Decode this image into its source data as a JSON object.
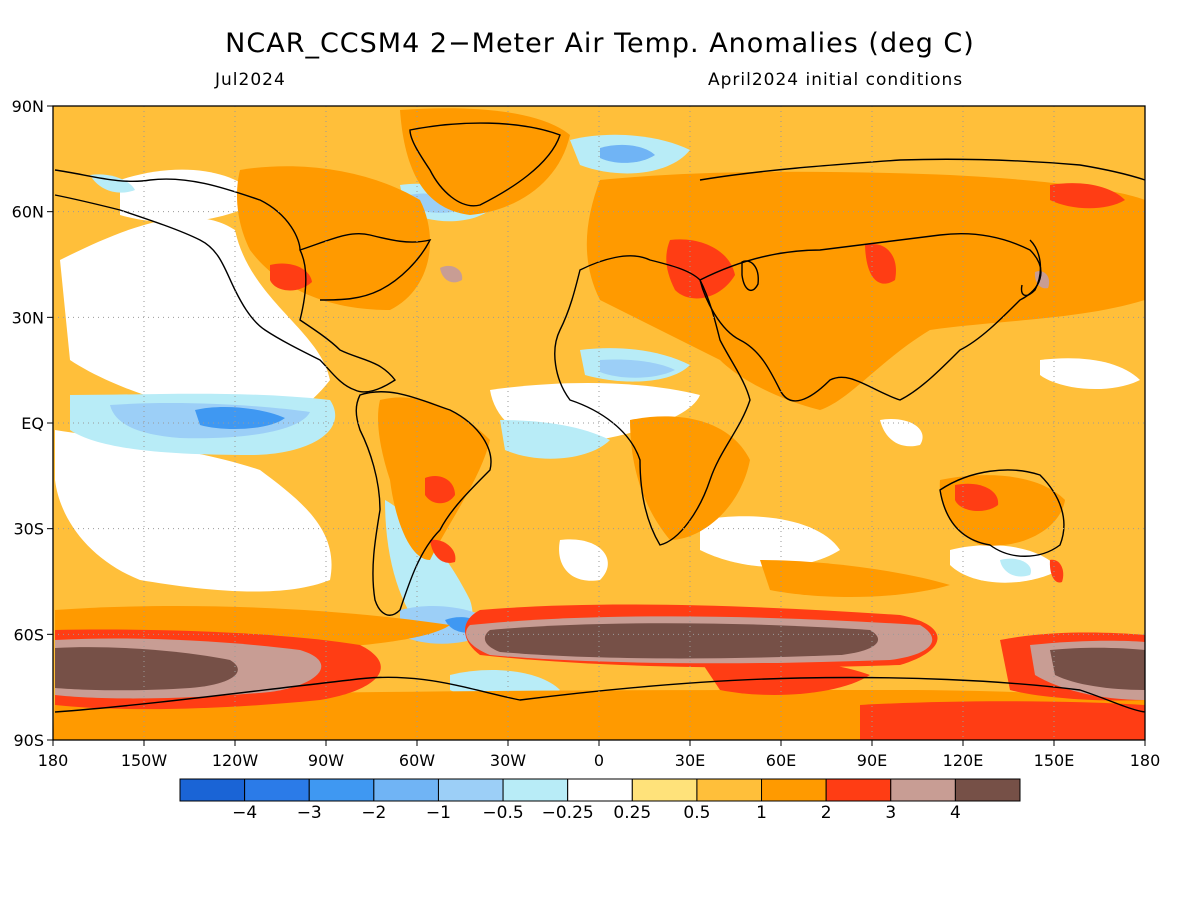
{
  "header": {
    "title": "NCAR_CCSM4 2−Meter Air Temp. Anomalies (deg C)",
    "valid_month": "Jul2024",
    "init": "April2024 initial conditions"
  },
  "axes": {
    "lat_ticks": [
      "90N",
      "60N",
      "30N",
      "EQ",
      "30S",
      "60S",
      "90S"
    ],
    "lon_ticks": [
      "180",
      "150W",
      "120W",
      "90W",
      "60W",
      "30W",
      "0",
      "30E",
      "60E",
      "90E",
      "120E",
      "150E",
      "180"
    ]
  },
  "colorbar": {
    "colors": [
      "#1a64d6",
      "#2b7be8",
      "#3f98f2",
      "#70b4f5",
      "#9ccff7",
      "#b8ecf7",
      "#ffffff",
      "#ffe27a",
      "#ffbf3a",
      "#ff9a00",
      "#ff3d14",
      "#c89d94",
      "#765047"
    ],
    "labels": [
      "−4",
      "−3",
      "−2",
      "−1",
      "−0.5",
      "−0.25",
      "0.25",
      "0.5",
      "1",
      "2",
      "3",
      "4"
    ]
  },
  "palette": {
    "ocean_base": "#ffbf3a",
    "warm": "#ff9a00",
    "hot": "#ff3d14",
    "vhot": "#c89d94",
    "extreme": "#765047",
    "light": "#ffe27a",
    "neutral": "#ffffff",
    "cool1": "#b8ecf7",
    "cool2": "#9ccff7",
    "cool3": "#70b4f5",
    "cool4": "#3f98f2",
    "cool5": "#2b7be8",
    "coast": "#000000",
    "grid": "#9a9a9a"
  }
}
